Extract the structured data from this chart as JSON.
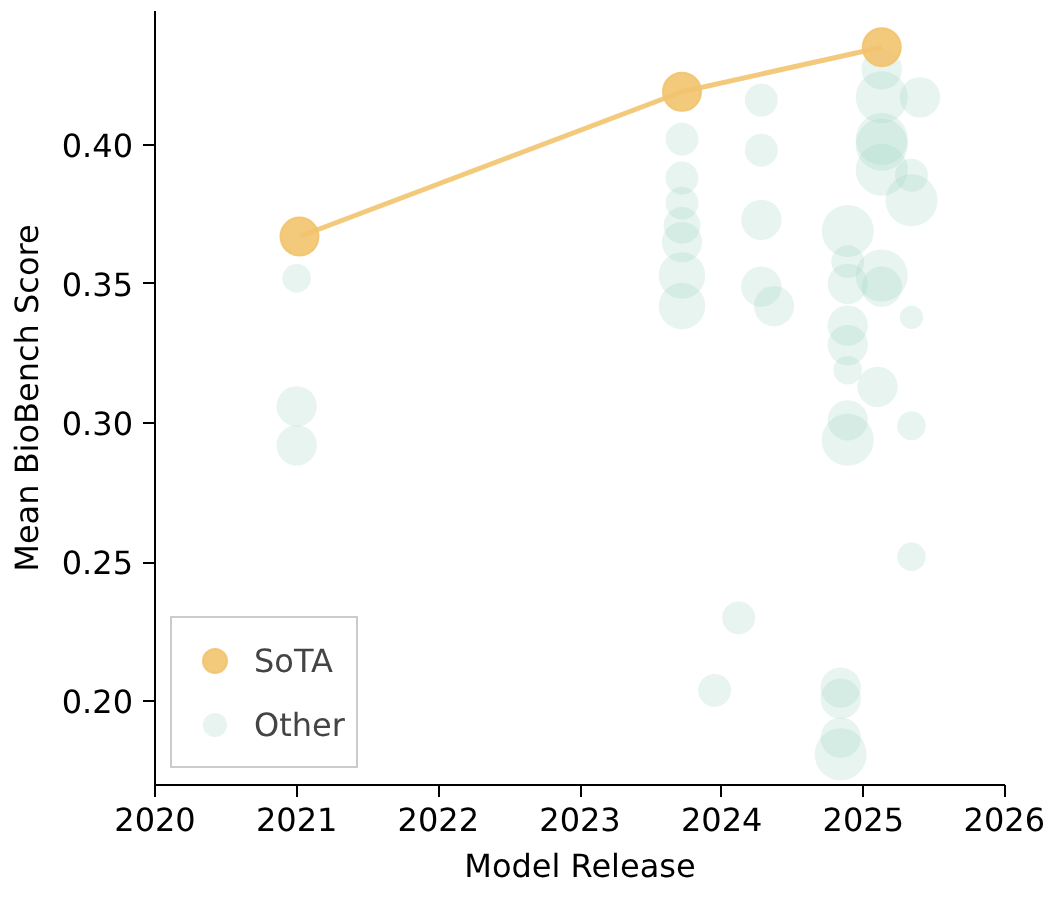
{
  "chart_data": {
    "type": "bubble",
    "xlabel": "Model Release",
    "ylabel": "Mean BioBench Score",
    "xlim": [
      2020,
      2026
    ],
    "xticks": [
      2020,
      2021,
      2022,
      2023,
      2024,
      2025,
      2026
    ],
    "ylim": [
      0.17,
      0.448
    ],
    "yticks": [
      {
        "value": 0.2,
        "label": "0.20"
      },
      {
        "value": 0.25,
        "label": "0.25"
      },
      {
        "value": 0.3,
        "label": "0.30"
      },
      {
        "value": 0.35,
        "label": "0.35"
      },
      {
        "value": 0.4,
        "label": "0.40"
      }
    ],
    "grid": false,
    "legend": "bottom left",
    "marker": "circle",
    "series": [
      {
        "name": "SoTA",
        "type": "line",
        "color": "#f2c36e",
        "x": [
          2021.02,
          2023.72,
          2025.13
        ],
        "values": [
          0.367,
          0.419,
          0.435
        ]
      },
      {
        "name": "Other",
        "color": "#9fd5c4",
        "x": [
          2021.0,
          2021.0,
          2021.0,
          2023.72,
          2023.72,
          2023.72,
          2023.72,
          2023.72,
          2023.72,
          2023.72,
          2024.28,
          2024.28,
          2024.28,
          2024.28,
          2024.37,
          2023.95,
          2024.12,
          2025.13,
          2025.13,
          2025.4,
          2025.13,
          2025.13,
          2025.13,
          2025.34,
          2025.34,
          2024.89,
          2024.89,
          2025.13,
          2024.89,
          2025.13,
          2025.34,
          2024.89,
          2024.89,
          2024.89,
          2025.1,
          2024.89,
          2024.89,
          2025.34,
          2025.34,
          2024.84,
          2024.84,
          2024.84,
          2024.84
        ],
        "values": [
          0.352,
          0.306,
          0.292,
          0.402,
          0.388,
          0.379,
          0.371,
          0.365,
          0.353,
          0.342,
          0.416,
          0.398,
          0.373,
          0.349,
          0.342,
          0.204,
          0.23,
          0.427,
          0.417,
          0.417,
          0.402,
          0.4,
          0.391,
          0.389,
          0.38,
          0.369,
          0.358,
          0.353,
          0.35,
          0.349,
          0.338,
          0.335,
          0.328,
          0.319,
          0.313,
          0.301,
          0.294,
          0.299,
          0.252,
          0.205,
          0.201,
          0.187,
          0.181
        ],
        "sizes": [
          0.3,
          0.6,
          0.6,
          0.4,
          0.4,
          0.4,
          0.5,
          0.6,
          0.8,
          0.8,
          0.4,
          0.4,
          0.6,
          0.6,
          0.6,
          0.4,
          0.4,
          0.6,
          1.0,
          0.6,
          1.0,
          1.0,
          1.0,
          0.4,
          1.0,
          1.0,
          0.4,
          1.0,
          0.6,
          0.6,
          0.2,
          0.6,
          0.6,
          0.3,
          0.6,
          0.6,
          1.0,
          0.3,
          0.3,
          0.6,
          0.6,
          0.6,
          1.0
        ]
      }
    ]
  }
}
